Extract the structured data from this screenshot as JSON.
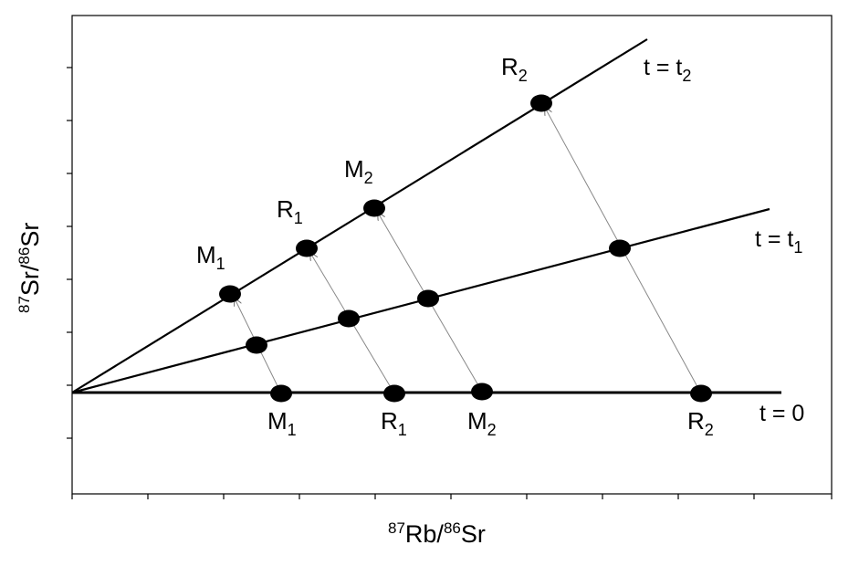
{
  "axes": {
    "x_label": {
      "sup": "87",
      "base1": "Rb/",
      "sup2": "86",
      "base2": "Sr"
    },
    "y_label": {
      "sup": "87",
      "base1": "Sr/",
      "sup2": "86",
      "base2": "Sr"
    }
  },
  "isochrons": [
    {
      "id": "t0",
      "label": {
        "main": "t = 0",
        "sub": ""
      }
    },
    {
      "id": "t1",
      "label": {
        "main": "t = t",
        "sub": "1"
      }
    },
    {
      "id": "t2",
      "label": {
        "main": "t = t",
        "sub": "2"
      }
    }
  ],
  "samples": [
    {
      "id": "M1",
      "label": {
        "main": "M",
        "sub": "1"
      }
    },
    {
      "id": "R1",
      "label": {
        "main": "R",
        "sub": "1"
      }
    },
    {
      "id": "M2",
      "label": {
        "main": "M",
        "sub": "2"
      }
    },
    {
      "id": "R2",
      "label": {
        "main": "R",
        "sub": "2"
      }
    }
  ],
  "colors": {
    "ink": "#000000",
    "arrow": "#888888"
  }
}
